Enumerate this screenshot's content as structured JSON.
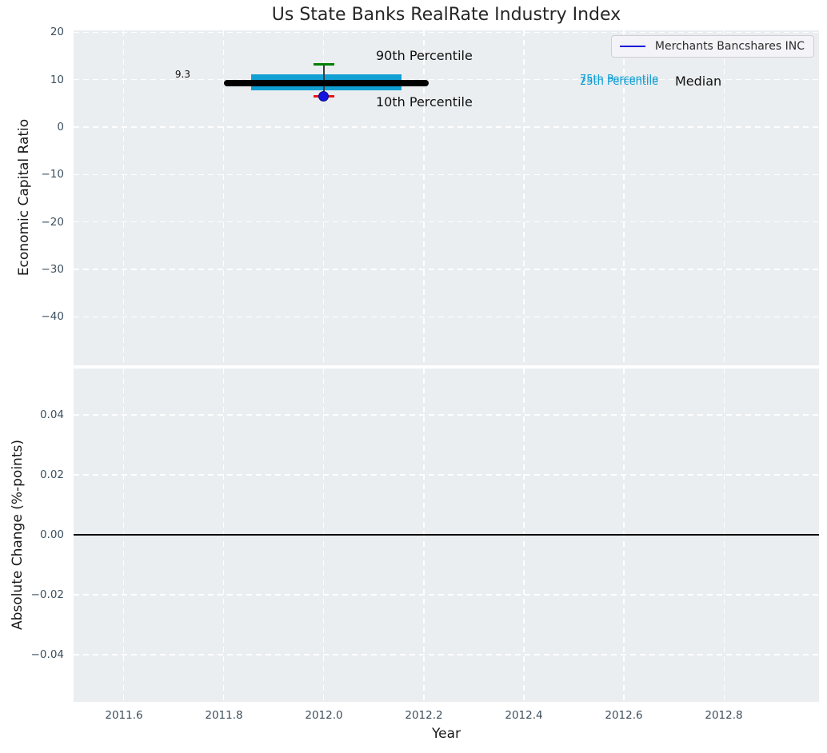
{
  "title": "Us State Banks RealRate Industry Index",
  "legend": {
    "label": "Merchants Bancshares INC",
    "line_color": "#1a1ad9"
  },
  "top_axis": {
    "ylabel": "Economic Capital Ratio",
    "ytick_labels": [
      "20",
      "10",
      "0",
      "−10",
      "−20",
      "−30",
      "−40"
    ]
  },
  "bottom_axis": {
    "ylabel": "Absolute Change (%-points)",
    "xlabel": "Year",
    "ytick_labels": [
      "0.04",
      "0.02",
      "0.00",
      "−0.02",
      "−0.04"
    ],
    "xtick_labels": [
      "2011.6",
      "2011.8",
      "2012.0",
      "2012.2",
      "2012.4",
      "2012.6",
      "2012.8"
    ]
  },
  "annotations": {
    "p90": "90th Percentile",
    "p10": "10th Percentile",
    "p75": "75th Percentile",
    "p25": "25th Percentile",
    "median": "Median",
    "median_value": "9.3"
  },
  "chart_data": [
    {
      "type": "boxplot",
      "title": "Us State Banks RealRate Industry Index",
      "ylabel": "Economic Capital Ratio",
      "xlim": [
        2011.5,
        2012.99
      ],
      "ylim": [
        -50.25,
        20.4
      ],
      "yticks": [
        20,
        10,
        0,
        -10,
        -20,
        -30,
        -40
      ],
      "xticks": [
        2011.6,
        2011.8,
        2012.0,
        2012.2,
        2012.4,
        2012.6,
        2012.8
      ],
      "grid": true,
      "legend_position": "upper right",
      "x": 2012.0,
      "median": 9.3,
      "median_label": "9.3",
      "p25": 7.8,
      "p75": 11.1,
      "p10": 6.5,
      "p90": 13.2,
      "median_span": [
        2011.8,
        2012.21
      ],
      "box_span": [
        2011.855,
        2012.155
      ],
      "cap_halfwidth": 0.021,
      "series": [
        {
          "name": "Merchants Bancshares INC",
          "color": "#1a1ad9",
          "points": [
            [
              2012.0,
              6.5
            ]
          ]
        }
      ],
      "colors": {
        "box": "#119fd4",
        "median_line": "#000000",
        "p90_cap": "#008000",
        "p10_cap": "#ee1111",
        "whisker": "#3a3a3a",
        "marker": "#1515e0"
      }
    },
    {
      "type": "line",
      "ylabel": "Absolute Change (%-points)",
      "xlabel": "Year",
      "xlim": [
        2011.5,
        2012.99
      ],
      "ylim": [
        -0.0557,
        0.0555
      ],
      "yticks": [
        0.04,
        0.02,
        0.0,
        -0.02,
        -0.04
      ],
      "xticks": [
        2011.6,
        2011.8,
        2012.0,
        2012.2,
        2012.4,
        2012.6,
        2012.8
      ],
      "grid": true,
      "series": [
        {
          "name": "Absolute Change",
          "color": "#000000",
          "x": [
            2011.5,
            2012.99
          ],
          "y": [
            0.0,
            0.0
          ]
        }
      ]
    }
  ]
}
